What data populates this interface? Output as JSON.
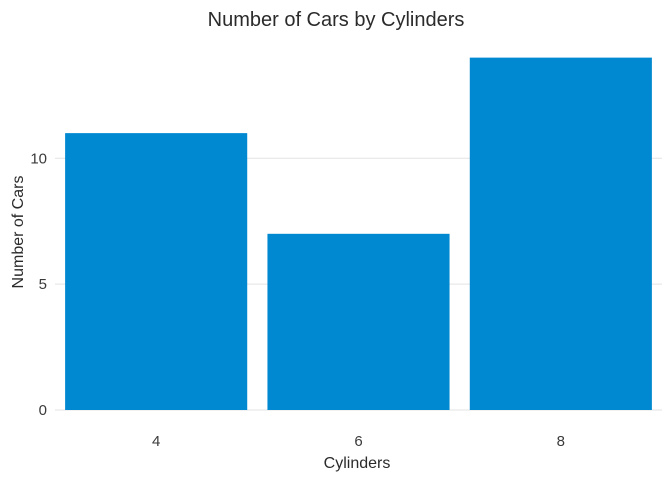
{
  "chart_data": {
    "type": "bar",
    "title": "Number of Cars by Cylinders",
    "xlabel": "Cylinders",
    "ylabel": "Number of Cars",
    "categories": [
      "4",
      "6",
      "8"
    ],
    "values": [
      11,
      7,
      14
    ],
    "ylim": [
      0,
      14.7
    ],
    "yticks": [
      0,
      5,
      10
    ],
    "ytick_labels": [
      "0",
      "5",
      "10"
    ],
    "grid": true,
    "legend": "none",
    "bar_color": "#0088D1"
  }
}
